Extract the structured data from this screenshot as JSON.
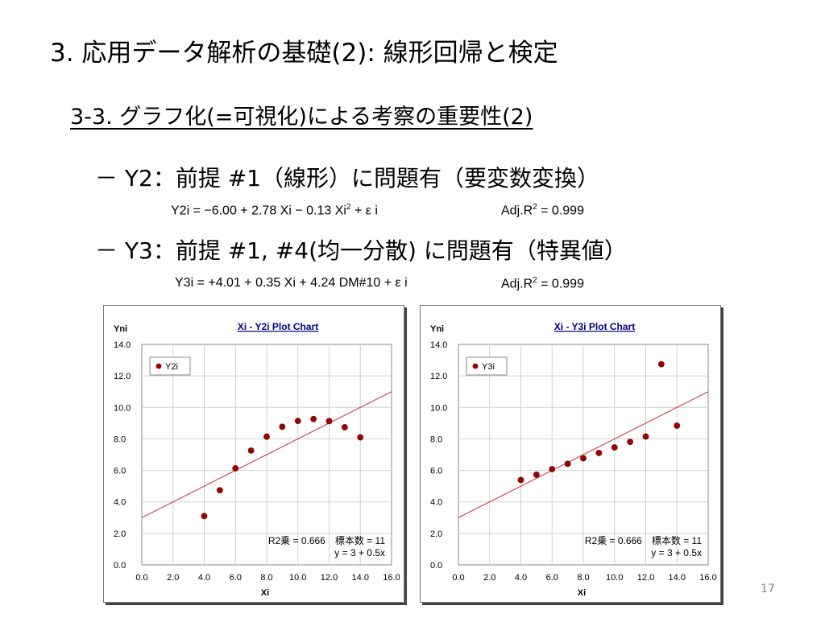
{
  "slide": {
    "title": "3. 応用データ解析の基礎(2): 線形回帰と検定",
    "section": "3-3. グラフ化(=可視化)による考察の重要性(2)",
    "bullet_y2": "－ Y2：前提 #1（線形）に問題有（要変数変換）",
    "bullet_y3": "－ Y3：前提 #1, #4(均一分散) に問題有（特異値）",
    "formula_y2": {
      "main": "Y2i = −6.00 + 2.78 Xi − 0.13  Xi",
      "sup": "2",
      "tail": "  +  ε i",
      "adj": "Adj.R",
      "adj_sup": "2",
      "adj_tail": " = 0.999"
    },
    "formula_y3": {
      "main": "Y3i = +4.01 + 0.35 Xi + 4.24 DM#10 +  ε i",
      "adj": "Adj.R",
      "adj_sup": "2",
      "adj_tail": " = 0.999"
    },
    "page_number": "17"
  },
  "colors": {
    "point": "#a00000",
    "fit_line": "#c03030",
    "grid": "#d0d0d0",
    "title_text": "#000080"
  },
  "chart_data": [
    {
      "type": "scatter",
      "title": "Xi - Y2i Plot Chart",
      "xlabel": "Xi",
      "ylabel": "Yni",
      "xlim": [
        0,
        16
      ],
      "ylim": [
        0,
        14
      ],
      "xticks": [
        "0.0",
        "2.0",
        "4.0",
        "6.0",
        "8.0",
        "10.0",
        "12.0",
        "14.0",
        "16.0"
      ],
      "yticks": [
        "0.0",
        "2.0",
        "4.0",
        "6.0",
        "8.0",
        "10.0",
        "12.0",
        "14.0"
      ],
      "grid": true,
      "legend": "top-left",
      "series": [
        {
          "name": "Y2i",
          "x": [
            4,
            5,
            6,
            7,
            8,
            9,
            10,
            11,
            12,
            13,
            14
          ],
          "y": [
            3.1,
            4.74,
            6.13,
            7.26,
            8.14,
            8.77,
            9.14,
            9.26,
            9.13,
            8.74,
            8.1
          ]
        }
      ],
      "fit": {
        "intercept": 3,
        "slope": 0.5
      },
      "stats_line1": "R2乗 = 0.666　標本数 = 11",
      "stats_line2": "y = 3 + 0.5x"
    },
    {
      "type": "scatter",
      "title": "Xi - Y3i Plot Chart",
      "xlabel": "Xi",
      "ylabel": "Yni",
      "xlim": [
        0,
        16
      ],
      "ylim": [
        0,
        14
      ],
      "xticks": [
        "0.0",
        "2.0",
        "4.0",
        "6.0",
        "8.0",
        "10.0",
        "12.0",
        "14.0",
        "16.0"
      ],
      "yticks": [
        "0.0",
        "2.0",
        "4.0",
        "6.0",
        "8.0",
        "10.0",
        "12.0",
        "14.0"
      ],
      "grid": true,
      "legend": "top-left",
      "series": [
        {
          "name": "Y3i",
          "x": [
            4,
            5,
            6,
            7,
            8,
            9,
            10,
            11,
            12,
            13,
            14
          ],
          "y": [
            5.39,
            5.73,
            6.08,
            6.42,
            6.77,
            7.11,
            7.46,
            7.81,
            8.15,
            12.74,
            8.84
          ]
        }
      ],
      "fit": {
        "intercept": 3,
        "slope": 0.5
      },
      "stats_line1": "R2乗 = 0.666　標本数 = 11",
      "stats_line2": "y = 3 + 0.5x"
    }
  ]
}
